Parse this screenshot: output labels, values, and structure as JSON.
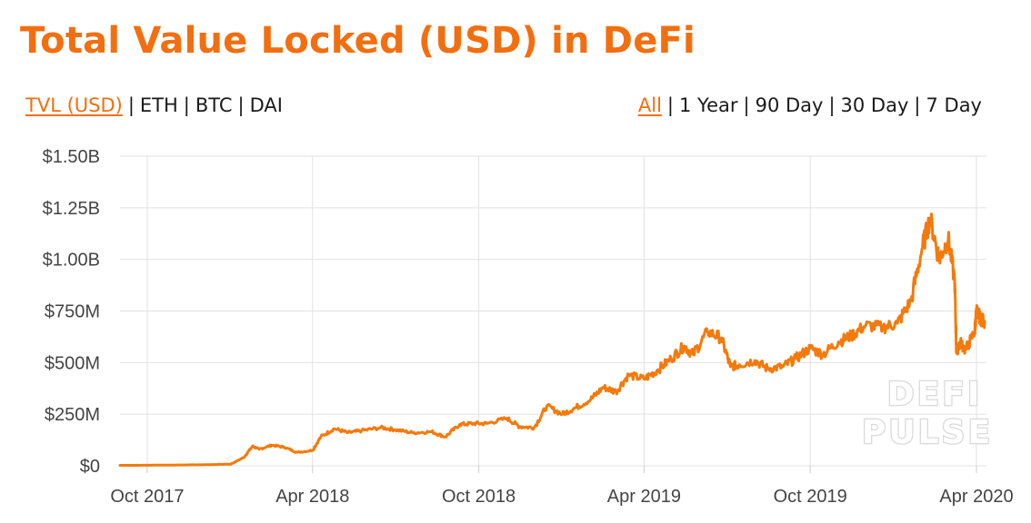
{
  "title": "Total Value Locked (USD) in DeFi",
  "metric_tabs": [
    {
      "label": "TVL (USD)",
      "active": true
    },
    {
      "label": "ETH",
      "active": false
    },
    {
      "label": "BTC",
      "active": false
    },
    {
      "label": "DAI",
      "active": false
    }
  ],
  "range_tabs": [
    {
      "label": "All",
      "active": true
    },
    {
      "label": "1 Year",
      "active": false
    },
    {
      "label": "90 Day",
      "active": false
    },
    {
      "label": "30 Day",
      "active": false
    },
    {
      "label": "7 Day",
      "active": false
    }
  ],
  "separator": "|",
  "watermark": [
    "DEFI",
    "PULSE"
  ],
  "colors": {
    "accent": "#f26f10",
    "grid": "#e2e2e2",
    "line": "#f47a0c"
  },
  "chart_data": {
    "type": "line",
    "x_range": [
      "2017-09-01",
      "2020-04-12"
    ],
    "ylim": [
      0,
      1500000000
    ],
    "y_ticks": [
      0,
      250000000,
      500000000,
      750000000,
      1000000000,
      1250000000,
      1500000000
    ],
    "y_tick_labels": [
      "$0",
      "$250M",
      "$500M",
      "$750M",
      "$1.00B",
      "$1.25B",
      "$1.50B"
    ],
    "x_ticks": [
      "2017-10-01",
      "2018-04-01",
      "2018-10-01",
      "2019-04-01",
      "2019-10-01",
      "2020-04-01"
    ],
    "x_tick_labels": [
      "Oct 2017",
      "Apr 2018",
      "Oct 2018",
      "Apr 2019",
      "Oct 2019",
      "Apr 2020"
    ],
    "grid": true,
    "legend": "none",
    "series": [
      {
        "x": [
          "2017-09-01",
          "2017-10-15",
          "2017-12-01",
          "2018-01-01",
          "2018-01-15",
          "2018-01-25",
          "2018-02-01",
          "2018-02-15",
          "2018-03-01",
          "2018-03-15",
          "2018-04-01",
          "2018-04-10",
          "2018-04-25",
          "2018-05-10",
          "2018-05-25",
          "2018-06-15",
          "2018-07-01",
          "2018-07-20",
          "2018-08-10",
          "2018-08-25",
          "2018-09-10",
          "2018-09-25",
          "2018-10-10",
          "2018-11-01",
          "2018-11-15",
          "2018-12-01",
          "2018-12-15",
          "2019-01-01",
          "2019-01-15",
          "2019-02-01",
          "2019-02-15",
          "2019-03-01",
          "2019-03-15",
          "2019-04-01",
          "2019-04-15",
          "2019-05-01",
          "2019-05-15",
          "2019-05-25",
          "2019-06-10",
          "2019-06-25",
          "2019-07-05",
          "2019-07-15",
          "2019-08-01",
          "2019-08-15",
          "2019-09-01",
          "2019-09-15",
          "2019-10-01",
          "2019-10-15",
          "2019-11-01",
          "2019-11-15",
          "2019-12-01",
          "2019-12-20",
          "2020-01-05",
          "2020-01-20",
          "2020-02-01",
          "2020-02-10",
          "2020-02-20",
          "2020-03-01",
          "2020-03-08",
          "2020-03-10",
          "2020-03-14",
          "2020-03-20",
          "2020-03-30",
          "2020-04-01",
          "2020-04-06",
          "2020-04-10"
        ],
        "values": [
          2000000,
          3000000,
          5000000,
          8000000,
          40000000,
          95000000,
          80000000,
          100000000,
          90000000,
          65000000,
          75000000,
          140000000,
          180000000,
          160000000,
          170000000,
          185000000,
          175000000,
          160000000,
          165000000,
          140000000,
          200000000,
          205000000,
          205000000,
          230000000,
          190000000,
          185000000,
          290000000,
          250000000,
          280000000,
          320000000,
          380000000,
          360000000,
          440000000,
          420000000,
          460000000,
          520000000,
          580000000,
          540000000,
          650000000,
          620000000,
          480000000,
          490000000,
          510000000,
          470000000,
          480000000,
          520000000,
          570000000,
          540000000,
          600000000,
          630000000,
          680000000,
          670000000,
          690000000,
          800000000,
          1050000000,
          1200000000,
          1000000000,
          1100000000,
          900000000,
          550000000,
          600000000,
          560000000,
          650000000,
          750000000,
          710000000,
          700000000
        ]
      }
    ]
  }
}
